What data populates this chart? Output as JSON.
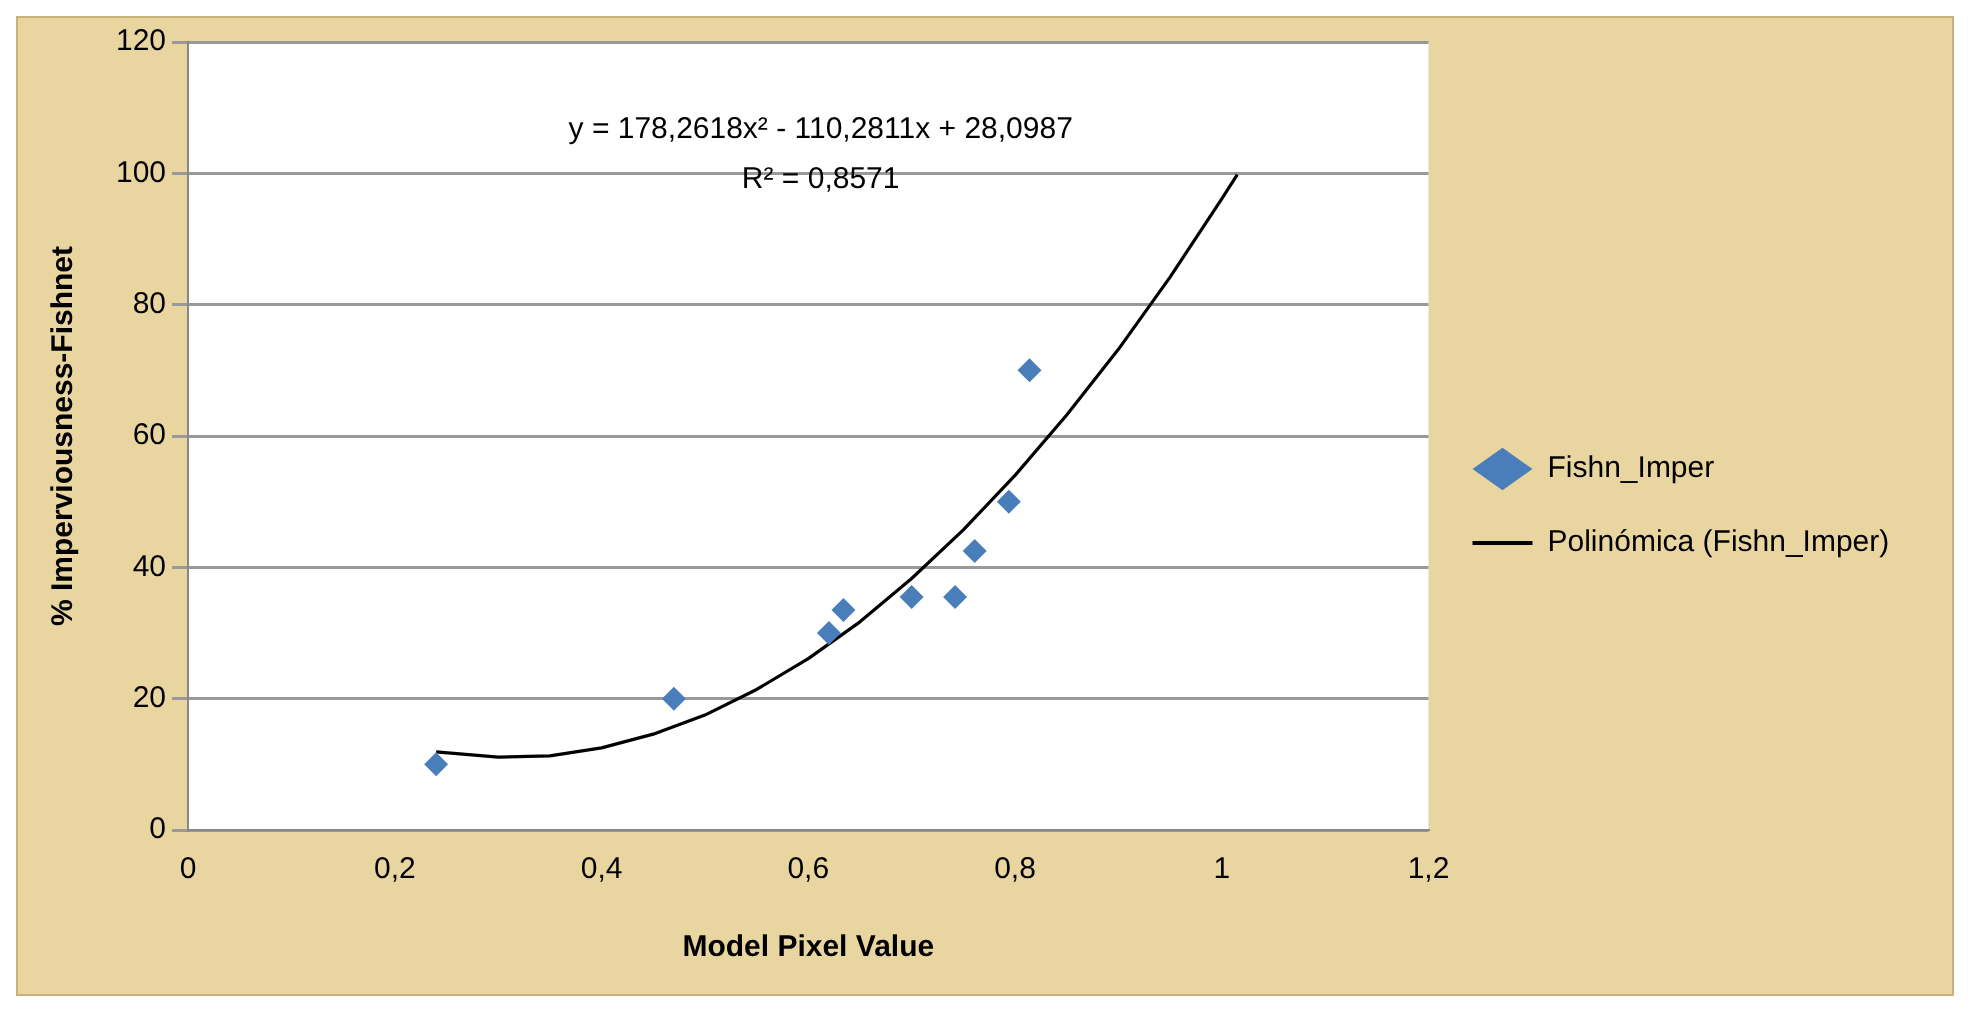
{
  "chart_data": {
    "type": "scatter",
    "xlabel": "Model Pixel Value",
    "ylabel": "% Imperviousness-Fishnet",
    "xlim": [
      0,
      1.2
    ],
    "xticks": [
      0,
      {
        "value": 0.2,
        "label": "0,2"
      },
      {
        "value": 0.4,
        "label": "0,4"
      },
      {
        "value": 0.6,
        "label": "0,6"
      },
      {
        "value": 0.8,
        "label": "0,8"
      },
      1,
      {
        "value": 1.2,
        "label": "1,2"
      }
    ],
    "ylim": [
      0,
      120
    ],
    "yticks": [
      0,
      20,
      40,
      60,
      80,
      100,
      120
    ],
    "grid": "y",
    "legend": "right",
    "marker": "diamond",
    "annotations": [
      "y = 178,2618x² - 110,2811x + 28,0987",
      "R² = 0,8571"
    ],
    "series": [
      {
        "name": "Fishn_Imper",
        "type": "scatter",
        "color": "#4a7ebb",
        "x": [
          0.24,
          0.47,
          0.62,
          0.634,
          0.7,
          0.742,
          0.761,
          0.794,
          0.814
        ],
        "values": [
          10,
          20,
          30,
          33.5,
          35.5,
          35.5,
          42.5,
          50,
          70
        ]
      },
      {
        "name": "Polinómica (Fishn_Imper)",
        "type": "line",
        "color": "#000000",
        "marker": "none",
        "x": [
          0.24,
          0.3,
          0.35,
          0.4,
          0.45,
          0.5,
          0.55,
          0.6,
          0.65,
          0.7,
          0.75,
          0.8,
          0.85,
          0.9,
          0.95,
          1.0,
          1.015
        ],
        "values": [
          11.9,
          11.1,
          11.3,
          12.5,
          14.6,
          17.5,
          21.4,
          26.1,
          31.7,
          38.3,
          45.7,
          54.0,
          63.2,
          73.2,
          84.2,
          96.1,
          99.8
        ]
      }
    ]
  }
}
